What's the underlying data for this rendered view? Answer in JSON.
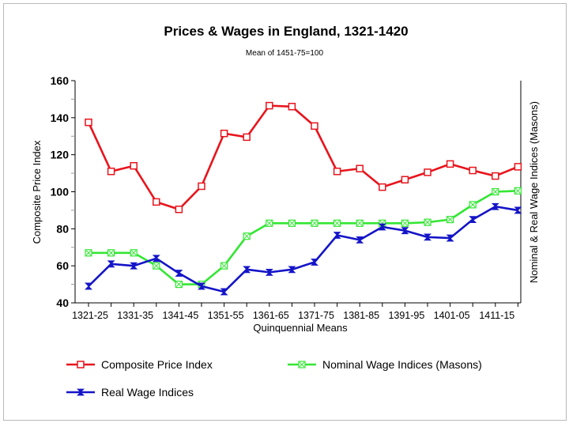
{
  "chart_data": {
    "type": "line",
    "title": "Prices & Wages in England, 1321-1420",
    "subtitle": "Mean of 1451-75=100",
    "xlabel": "Quinquennial Means",
    "ylabel": "Composite Price Index",
    "y2label": "Nominal & Real Wage Indices (Masons)",
    "ylim": [
      40,
      160
    ],
    "yticks": [
      40,
      60,
      80,
      100,
      120,
      140,
      160
    ],
    "category_labels_printed": [
      "1321-25",
      "1331-35",
      "1341-45",
      "1351-55",
      "1361-65",
      "1371-75",
      "1381-85",
      "1391-95",
      "1401-05",
      "1411-15"
    ],
    "x_points": [
      "1321-25",
      "1326-30",
      "1331-35",
      "1336-40",
      "1341-45",
      "1346-50",
      "1351-55",
      "1356-60",
      "1361-65",
      "1366-70",
      "1371-75",
      "1376-80",
      "1381-85",
      "1386-90",
      "1391-95",
      "1396-1400",
      "1401-05",
      "1406-10",
      "1411-15",
      "1416-20"
    ],
    "series": [
      {
        "name": "Composite Price Index",
        "color": "#e8141c",
        "marker": "square",
        "values": [
          137.5,
          111,
          114,
          94.5,
          90.5,
          103,
          131.5,
          129.5,
          146.5,
          146,
          135.5,
          111,
          112.5,
          102.5,
          106.5,
          110.5,
          115,
          111.5,
          108.5,
          113.5
        ]
      },
      {
        "name": "Nominal Wage Indices (Masons)",
        "color": "#33e633",
        "marker": "square-x",
        "values": [
          67,
          67,
          67,
          60,
          50,
          50,
          60,
          76,
          83,
          83,
          83,
          83,
          83,
          83,
          83,
          83.5,
          85,
          93,
          100,
          100.5
        ]
      },
      {
        "name": "Real Wage Indices",
        "color": "#1414c8",
        "marker": "bowtie",
        "values": [
          49,
          61,
          60,
          64,
          56,
          49,
          46,
          58,
          56.5,
          58,
          62,
          76.5,
          74,
          81,
          79,
          75.5,
          75,
          85,
          92,
          90
        ]
      }
    ],
    "grid": false,
    "legend_position": "bottom"
  }
}
